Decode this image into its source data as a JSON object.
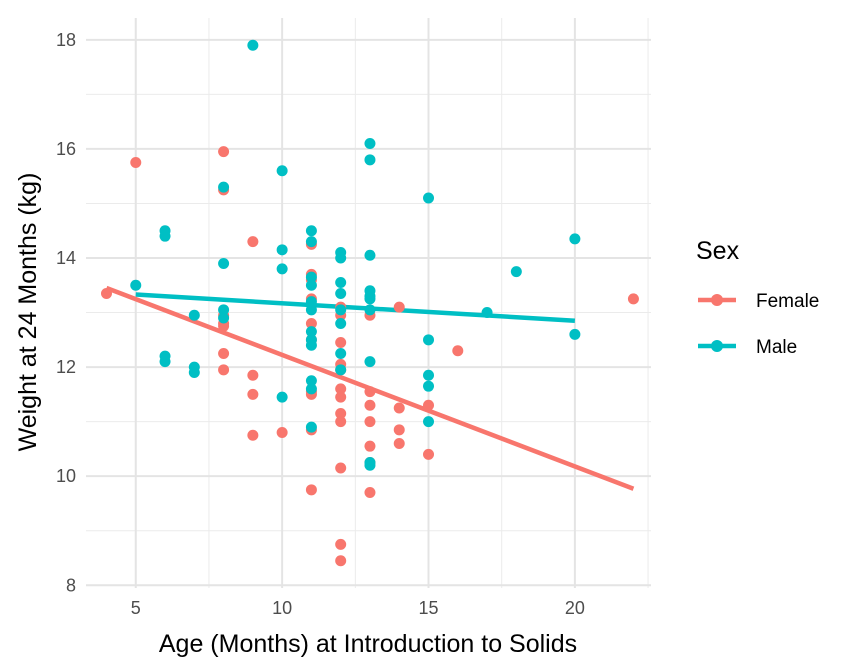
{
  "chart_data": {
    "type": "scatter",
    "xlabel": "Age (Months) at Introduction to Solids",
    "ylabel": "Weight at 24 Months (kg)",
    "xlim": [
      3.3,
      22.6
    ],
    "ylim": [
      7.95,
      18.4
    ],
    "x_ticks": [
      5,
      10,
      15,
      20
    ],
    "y_ticks": [
      8,
      10,
      12,
      14,
      16,
      18
    ],
    "grid": true,
    "legend": {
      "title": "Sex",
      "position": "right"
    },
    "series": [
      {
        "name": "Female",
        "color": "#F8766D",
        "points": [
          [
            4,
            13.35
          ],
          [
            5,
            15.75
          ],
          [
            8,
            15.95
          ],
          [
            8,
            15.25
          ],
          [
            8,
            12.95
          ],
          [
            8,
            12.8
          ],
          [
            8,
            12.75
          ],
          [
            8,
            12.25
          ],
          [
            8,
            11.95
          ],
          [
            9,
            14.3
          ],
          [
            9,
            11.85
          ],
          [
            9,
            11.5
          ],
          [
            9,
            10.75
          ],
          [
            10,
            10.8
          ],
          [
            11,
            14.25
          ],
          [
            11,
            13.7
          ],
          [
            11,
            13.6
          ],
          [
            11,
            13.25
          ],
          [
            11,
            12.8
          ],
          [
            11,
            12.5
          ],
          [
            11,
            11.55
          ],
          [
            11,
            11.5
          ],
          [
            11,
            10.85
          ],
          [
            11,
            9.75
          ],
          [
            12,
            13.1
          ],
          [
            12,
            12.95
          ],
          [
            12,
            12.45
          ],
          [
            12,
            12.05
          ],
          [
            12,
            11.95
          ],
          [
            12,
            11.6
          ],
          [
            12,
            11.45
          ],
          [
            12,
            11.15
          ],
          [
            12,
            11.0
          ],
          [
            12,
            10.15
          ],
          [
            12,
            8.75
          ],
          [
            12,
            8.45
          ],
          [
            13,
            12.95
          ],
          [
            13,
            11.55
          ],
          [
            13,
            11.3
          ],
          [
            13,
            11.0
          ],
          [
            13,
            10.55
          ],
          [
            13,
            10.25
          ],
          [
            13,
            9.7
          ],
          [
            14,
            13.1
          ],
          [
            14,
            11.25
          ],
          [
            14,
            10.85
          ],
          [
            14,
            10.6
          ],
          [
            15,
            11.3
          ],
          [
            15,
            10.4
          ],
          [
            16,
            12.3
          ],
          [
            22,
            13.25
          ]
        ],
        "trend": {
          "x": [
            4,
            22
          ],
          "y": [
            13.45,
            9.77
          ]
        }
      },
      {
        "name": "Male",
        "color": "#00BFC4",
        "points": [
          [
            5,
            13.5
          ],
          [
            6,
            14.5
          ],
          [
            6,
            14.4
          ],
          [
            6,
            12.2
          ],
          [
            6,
            12.1
          ],
          [
            7,
            12.95
          ],
          [
            7,
            12.0
          ],
          [
            7,
            11.9
          ],
          [
            8,
            15.3
          ],
          [
            8,
            13.9
          ],
          [
            8,
            13.05
          ],
          [
            8,
            12.9
          ],
          [
            9,
            17.9
          ],
          [
            10,
            15.6
          ],
          [
            10,
            14.15
          ],
          [
            10,
            13.8
          ],
          [
            10,
            11.45
          ],
          [
            11,
            14.5
          ],
          [
            11,
            14.3
          ],
          [
            11,
            13.65
          ],
          [
            11,
            13.5
          ],
          [
            11,
            13.2
          ],
          [
            11,
            13.05
          ],
          [
            11,
            12.65
          ],
          [
            11,
            12.5
          ],
          [
            11,
            12.4
          ],
          [
            11,
            11.75
          ],
          [
            11,
            11.6
          ],
          [
            11,
            10.9
          ],
          [
            12,
            14.1
          ],
          [
            12,
            14.0
          ],
          [
            12,
            13.55
          ],
          [
            12,
            13.35
          ],
          [
            12,
            13.05
          ],
          [
            12,
            12.8
          ],
          [
            12,
            12.25
          ],
          [
            12,
            11.95
          ],
          [
            13,
            16.1
          ],
          [
            13,
            15.8
          ],
          [
            13,
            14.05
          ],
          [
            13,
            13.4
          ],
          [
            13,
            13.3
          ],
          [
            13,
            13.25
          ],
          [
            13,
            13.05
          ],
          [
            13,
            12.1
          ],
          [
            13,
            10.25
          ],
          [
            13,
            10.2
          ],
          [
            15,
            15.1
          ],
          [
            15,
            12.5
          ],
          [
            15,
            11.85
          ],
          [
            15,
            11.65
          ],
          [
            15,
            11.0
          ],
          [
            17,
            13.0
          ],
          [
            18,
            13.75
          ],
          [
            20,
            14.35
          ],
          [
            20,
            12.6
          ]
        ],
        "trend": {
          "x": [
            5,
            20
          ],
          "y": [
            13.33,
            12.85
          ]
        }
      }
    ]
  }
}
